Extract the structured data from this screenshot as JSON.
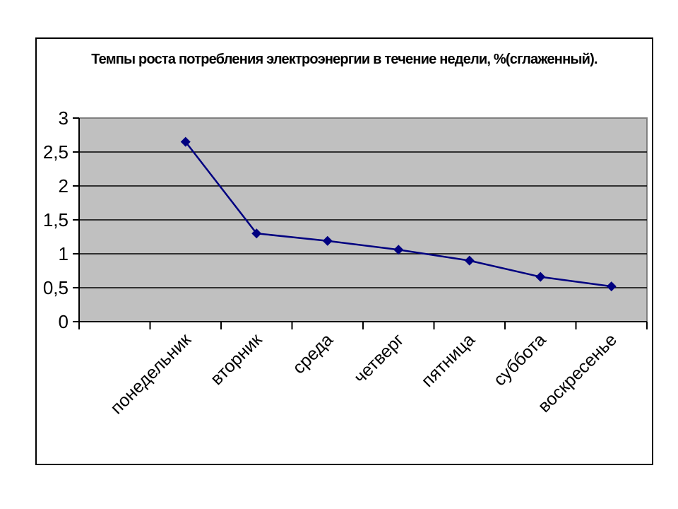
{
  "page": {
    "background_color": "#ffffff",
    "frame_border_color": "#000000"
  },
  "chart_data": {
    "type": "line",
    "title": "Темпы роста потребления электроэнергии в течение недели, %(сглаженный).",
    "categories": [
      "понедельник",
      "вторник",
      "среда",
      "четверг",
      "пятница",
      "суббота",
      "воскресенье"
    ],
    "values": [
      2.65,
      1.3,
      1.19,
      1.06,
      0.9,
      0.66,
      0.52
    ],
    "xlabel": "",
    "ylabel": "",
    "ylim": [
      0,
      3
    ],
    "yticks": [
      {
        "value": 0,
        "label": "0"
      },
      {
        "value": 0.5,
        "label": "0,5"
      },
      {
        "value": 1,
        "label": "1"
      },
      {
        "value": 1.5,
        "label": "1,5"
      },
      {
        "value": 2,
        "label": "2"
      },
      {
        "value": 2.5,
        "label": "2,5"
      },
      {
        "value": 3,
        "label": "3"
      }
    ],
    "grid": true,
    "legend": "none",
    "marker": "diamond",
    "x_slots": 8,
    "leading_empty_slots": 1,
    "colors": {
      "series": "#000080",
      "plot_bg": "#c0c0c0",
      "plot_border": "#808080",
      "gridline": "#000000",
      "axis": "#000000"
    }
  }
}
